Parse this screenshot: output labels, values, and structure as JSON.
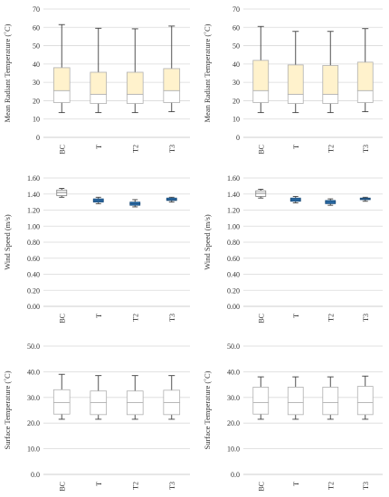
{
  "colors": {
    "grid": "#d9d9d9",
    "axis": "#bfbfbf",
    "whisker": "#404040",
    "box_stroke_light": "#b0b0b0",
    "box_stroke_dark": "#7f7f7f",
    "mrt_upper": "#fff2cc",
    "mrt_lower": "#ffffff",
    "ws_upper": "#ffffff",
    "ws_lower": "#ffffff",
    "ws_blue": "#2e75b6",
    "st_upper": "#ffffff",
    "st_lower": "#ffffff"
  },
  "chart_data": [
    {
      "type": "box",
      "ylabel": "Mean Radiant Temperature (˚C)",
      "ylim": [
        0,
        70
      ],
      "yticks": [
        0,
        10,
        20,
        30,
        40,
        50,
        60,
        70
      ],
      "ytick_labels": [
        "0",
        "10",
        "20",
        "30",
        "40",
        "50",
        "60",
        "70"
      ],
      "categories": [
        "BC",
        "T",
        "T2",
        "T3"
      ],
      "series": [
        {
          "category": "BC",
          "min": 13.5,
          "q1": 19,
          "median": 25.5,
          "q3": 38,
          "max": 61.5
        },
        {
          "category": "T",
          "min": 13.5,
          "q1": 18.5,
          "median": 23.5,
          "q3": 35.5,
          "max": 59.5
        },
        {
          "category": "T2",
          "min": 13.5,
          "q1": 18.5,
          "median": 23.5,
          "q3": 35.5,
          "max": 59.2
        },
        {
          "category": "T3",
          "min": 14,
          "q1": 19,
          "median": 25.5,
          "q3": 37.5,
          "max": 60.7
        }
      ],
      "style": "mrt"
    },
    {
      "type": "box",
      "ylabel": "Mean Radiant Temperature (˚C)",
      "ylim": [
        0,
        70
      ],
      "yticks": [
        0,
        10,
        20,
        30,
        40,
        50,
        60,
        70
      ],
      "ytick_labels": [
        "0",
        "10",
        "20",
        "30",
        "40",
        "50",
        "60",
        "70"
      ],
      "categories": [
        "BC",
        "T",
        "T2",
        "T3"
      ],
      "series": [
        {
          "category": "BC",
          "min": 13.5,
          "q1": 19,
          "median": 25.5,
          "q3": 42,
          "max": 60.5
        },
        {
          "category": "T",
          "min": 13.5,
          "q1": 18.5,
          "median": 23.5,
          "q3": 39.5,
          "max": 57.8
        },
        {
          "category": "T2",
          "min": 13.5,
          "q1": 18.5,
          "median": 23.5,
          "q3": 39.2,
          "max": 57.8
        },
        {
          "category": "T3",
          "min": 14,
          "q1": 19,
          "median": 25.5,
          "q3": 41,
          "max": 59.3
        }
      ],
      "style": "mrt"
    },
    {
      "type": "box",
      "ylabel": "Wind Speed (m/s)",
      "ylim": [
        0,
        1.6
      ],
      "yticks": [
        0,
        0.2,
        0.4,
        0.6,
        0.8,
        1.0,
        1.2,
        1.4,
        1.6
      ],
      "ytick_labels": [
        "0.00",
        "0.20",
        "0.40",
        "0.60",
        "0.80",
        "1.00",
        "1.20",
        "1.40",
        "1.60"
      ],
      "categories": [
        "BC",
        "T",
        "T2",
        "T3"
      ],
      "series": [
        {
          "category": "BC",
          "min": 1.36,
          "q1": 1.38,
          "median": 1.42,
          "q3": 1.45,
          "max": 1.47
        },
        {
          "category": "T",
          "min": 1.28,
          "q1": 1.3,
          "median": 1.32,
          "q3": 1.34,
          "max": 1.36
        },
        {
          "category": "T2",
          "min": 1.24,
          "q1": 1.26,
          "median": 1.28,
          "q3": 1.3,
          "max": 1.33
        },
        {
          "category": "T3",
          "min": 1.3,
          "q1": 1.32,
          "median": 1.33,
          "q3": 1.35,
          "max": 1.36
        }
      ],
      "style": "ws"
    },
    {
      "type": "box",
      "ylabel": "Wind Speed (m/s)",
      "ylim": [
        0,
        1.6
      ],
      "yticks": [
        0,
        0.2,
        0.4,
        0.6,
        0.8,
        1.0,
        1.2,
        1.4,
        1.6
      ],
      "ytick_labels": [
        "0.00",
        "0.20",
        "0.40",
        "0.60",
        "0.80",
        "1.00",
        "1.20",
        "1.40",
        "1.60"
      ],
      "categories": [
        "BC",
        "T",
        "T2",
        "T3"
      ],
      "series": [
        {
          "category": "BC",
          "min": 1.35,
          "q1": 1.37,
          "median": 1.41,
          "q3": 1.44,
          "max": 1.46
        },
        {
          "category": "T",
          "min": 1.29,
          "q1": 1.31,
          "median": 1.33,
          "q3": 1.35,
          "max": 1.37
        },
        {
          "category": "T2",
          "min": 1.26,
          "q1": 1.28,
          "median": 1.3,
          "q3": 1.32,
          "max": 1.34
        },
        {
          "category": "T3",
          "min": 1.31,
          "q1": 1.33,
          "median": 1.34,
          "q3": 1.35,
          "max": 1.36
        }
      ],
      "style": "ws"
    },
    {
      "type": "box",
      "ylabel": "Surface Temperature (˚C)",
      "ylim": [
        0,
        50
      ],
      "yticks": [
        0,
        10,
        20,
        30,
        40,
        50
      ],
      "ytick_labels": [
        "0.0",
        "10.0",
        "20.0",
        "30.0",
        "40.0",
        "50.0"
      ],
      "categories": [
        "BC",
        "T",
        "T2",
        "T3"
      ],
      "series": [
        {
          "category": "BC",
          "min": 21.5,
          "q1": 23.5,
          "median": 28,
          "q3": 33,
          "max": 39
        },
        {
          "category": "T",
          "min": 21.5,
          "q1": 23.3,
          "median": 28,
          "q3": 32.5,
          "max": 38.5
        },
        {
          "category": "T2",
          "min": 21.5,
          "q1": 23.3,
          "median": 28,
          "q3": 32.5,
          "max": 38.5
        },
        {
          "category": "T3",
          "min": 21.5,
          "q1": 23.3,
          "median": 28,
          "q3": 32.8,
          "max": 38.5
        }
      ],
      "style": "st"
    },
    {
      "type": "box",
      "ylabel": "Surface Temperature (˚C)",
      "ylim": [
        0,
        50
      ],
      "yticks": [
        0,
        10,
        20,
        30,
        40,
        50
      ],
      "ytick_labels": [
        "0.0",
        "10.0",
        "20.0",
        "30.0",
        "40.0",
        "50.0"
      ],
      "categories": [
        "BC",
        "T",
        "T2",
        "T3"
      ],
      "series": [
        {
          "category": "BC",
          "min": 21.5,
          "q1": 23.5,
          "median": 28,
          "q3": 34,
          "max": 38
        },
        {
          "category": "T",
          "min": 21.5,
          "q1": 23.3,
          "median": 28,
          "q3": 34,
          "max": 38
        },
        {
          "category": "T2",
          "min": 21.5,
          "q1": 23.3,
          "median": 28,
          "q3": 34,
          "max": 38
        },
        {
          "category": "T3",
          "min": 21.5,
          "q1": 23.3,
          "median": 28,
          "q3": 34.3,
          "max": 38.3
        }
      ],
      "style": "st"
    }
  ]
}
